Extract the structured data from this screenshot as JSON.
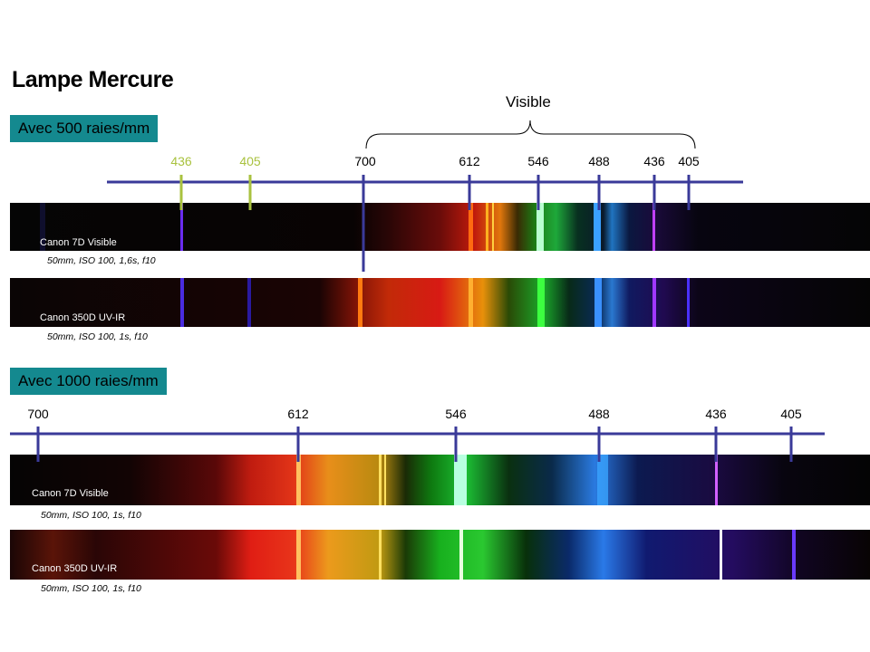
{
  "title": "Lampe Mercure",
  "visible_label": "Visible",
  "colors": {
    "badge": "#14898f",
    "axis": "#3a3a99",
    "second_order": "#a9c23f"
  },
  "sections": [
    {
      "badge": "Avec 500 raies/mm",
      "second_order_labels": [
        "436",
        "405"
      ],
      "wavelength_labels": [
        "700",
        "612",
        "546",
        "488",
        "436",
        "405"
      ],
      "strips": [
        {
          "camera": "Canon 7D Visible",
          "settings": "50mm, ISO 100, 1,6s, f10"
        },
        {
          "camera": "Canon 350D UV-IR",
          "settings": "50mm, ISO 100, 1s, f10"
        }
      ]
    },
    {
      "badge": "Avec 1000 raies/mm",
      "wavelength_labels": [
        "700",
        "612",
        "546",
        "488",
        "436",
        "405"
      ],
      "strips": [
        {
          "camera": "Canon 7D Visible",
          "settings": "50mm, ISO 100, 1s, f10"
        },
        {
          "camera": "Canon 350D UV-IR",
          "settings": "50mm, ISO 100, 1s, f10"
        }
      ]
    }
  ]
}
